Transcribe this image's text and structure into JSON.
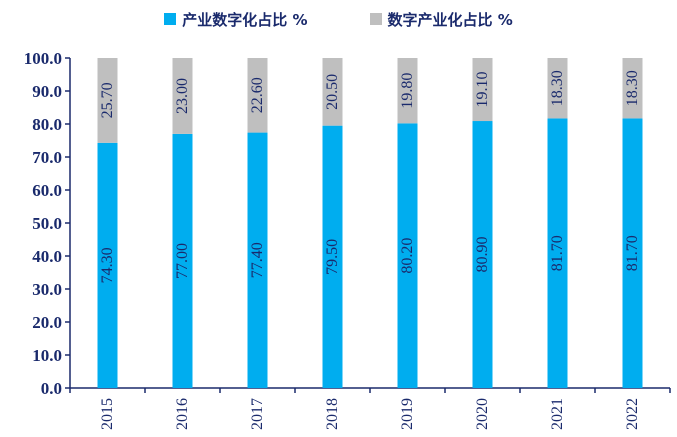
{
  "chart_data": {
    "type": "bar",
    "stacked": true,
    "title": "",
    "xlabel": "",
    "ylabel": "",
    "ylim": [
      0,
      100
    ],
    "yticks": [
      "0.0",
      "10.0",
      "20.0",
      "30.0",
      "40.0",
      "50.0",
      "60.0",
      "70.0",
      "80.0",
      "90.0",
      "100.0"
    ],
    "grid": false,
    "legend_position": "top",
    "categories": [
      "2015",
      "2016",
      "2017",
      "2018",
      "2019",
      "2020",
      "2021",
      "2022"
    ],
    "series": [
      {
        "name": "产业数字化占比 %",
        "color": "#00adef",
        "values": [
          74.3,
          77.0,
          77.4,
          79.5,
          80.2,
          80.9,
          81.7,
          81.7
        ],
        "labels": [
          "74.30",
          "77.00",
          "77.40",
          "79.50",
          "80.20",
          "80.90",
          "81.70",
          "81.70"
        ]
      },
      {
        "name": "数字产业化占比 %",
        "color": "#bfbfbf",
        "values": [
          25.7,
          23.0,
          22.6,
          20.5,
          19.8,
          19.1,
          18.3,
          18.3
        ],
        "labels": [
          "25.70",
          "23.00",
          "22.60",
          "20.50",
          "19.80",
          "19.10",
          "18.30",
          "18.30"
        ]
      }
    ],
    "axis_color": "#1a2a6c"
  }
}
